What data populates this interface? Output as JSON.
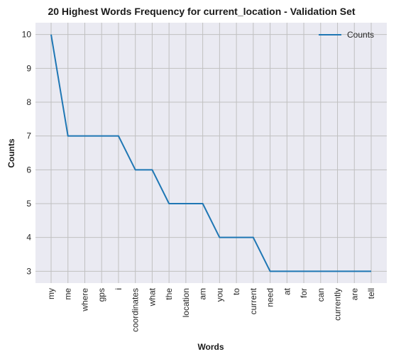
{
  "chart_data": {
    "type": "line",
    "title": "20 Highest Words Frequency for current_location - Validation Set",
    "xlabel": "Words",
    "ylabel": "Counts",
    "categories": [
      "my",
      "me",
      "where",
      "gps",
      "i",
      "coordinates",
      "what",
      "the",
      "location",
      "am",
      "you",
      "to",
      "current",
      "need",
      "at",
      "for",
      "can",
      "currently",
      "are",
      "tell"
    ],
    "series": [
      {
        "name": "Counts",
        "values": [
          10,
          7,
          7,
          7,
          7,
          6,
          6,
          5,
          5,
          5,
          4,
          4,
          4,
          3,
          3,
          3,
          3,
          3,
          3,
          3
        ]
      }
    ],
    "ylim": [
      2.65,
      10.35
    ],
    "yticks": [
      3,
      4,
      5,
      6,
      7,
      8,
      9,
      10
    ],
    "grid": true,
    "legend": "top-right",
    "colors": {
      "line": "#1f77b4",
      "plot_bg": "#eaeaf2",
      "grid": "#c0c0c0"
    }
  }
}
